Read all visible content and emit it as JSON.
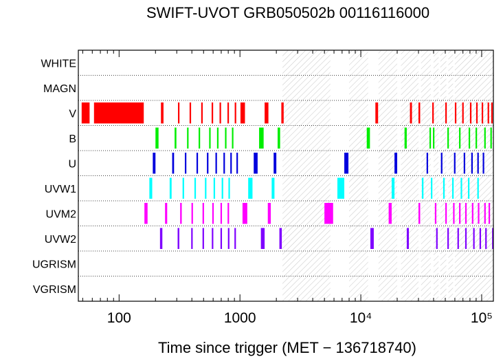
{
  "chart_data": {
    "type": "timeline",
    "title": "SWIFT-UVOT GRB050502b 00116116000",
    "xlabel": "Time since trigger (MET − 136718740)",
    "ylabel": "",
    "x_scale": "log",
    "xlim": [
      46,
      125000
    ],
    "x_ticks": [
      {
        "value": 100,
        "label": "100"
      },
      {
        "value": 1000,
        "label": "1000"
      },
      {
        "value": 10000,
        "label": "10⁴"
      },
      {
        "value": 100000,
        "label": "10⁵"
      }
    ],
    "categories": [
      "WHITE",
      "MAGN",
      "V",
      "B",
      "U",
      "UVW1",
      "UVM2",
      "UVW2",
      "UGRISM",
      "VGRISM"
    ],
    "colors": {
      "V": "#ff0000",
      "B": "#00ee00",
      "U": "#0000dd",
      "UVW1": "#00ffff",
      "UVM2": "#ff00ff",
      "UVW2": "#7f00ff"
    },
    "series": [
      {
        "name": "V",
        "intervals": [
          [
            49,
            57
          ],
          [
            62,
            160
          ],
          [
            222,
            233
          ],
          [
            307,
            315
          ],
          [
            383,
            392
          ],
          [
            478,
            490
          ],
          [
            583,
            594
          ],
          [
            678,
            690
          ],
          [
            788,
            800
          ],
          [
            905,
            922
          ],
          [
            1010,
            1100
          ],
          [
            1600,
            1720
          ],
          [
            2200,
            2300
          ],
          [
            13200,
            13900
          ],
          [
            25500,
            26500
          ],
          [
            30000,
            31000
          ],
          [
            39000,
            40000
          ],
          [
            50000,
            51000
          ],
          [
            60000,
            61000
          ],
          [
            69000,
            70000
          ],
          [
            80000,
            81000
          ],
          [
            90000,
            91000
          ],
          [
            100000,
            101000
          ],
          [
            112000,
            113000
          ],
          [
            120000,
            121000
          ]
        ]
      },
      {
        "name": "B",
        "intervals": [
          [
            200,
            212
          ],
          [
            288,
            298
          ],
          [
            365,
            375
          ],
          [
            455,
            465
          ],
          [
            556,
            566
          ],
          [
            646,
            656
          ],
          [
            752,
            762
          ],
          [
            858,
            868
          ],
          [
            1440,
            1570
          ],
          [
            2050,
            2150
          ],
          [
            11200,
            11900
          ],
          [
            23000,
            24000
          ],
          [
            37000,
            38000
          ],
          [
            39500,
            40500
          ],
          [
            52000,
            53000
          ],
          [
            65000,
            66000
          ],
          [
            78000,
            79000
          ],
          [
            89000,
            90000
          ],
          [
            105000,
            106000
          ],
          [
            118000,
            120000
          ]
        ]
      },
      {
        "name": "U",
        "intervals": [
          [
            190,
            200
          ],
          [
            275,
            285
          ],
          [
            350,
            360
          ],
          [
            437,
            447
          ],
          [
            533,
            543
          ],
          [
            627,
            637
          ],
          [
            730,
            740
          ],
          [
            832,
            842
          ],
          [
            935,
            945
          ],
          [
            1300,
            1400
          ],
          [
            1900,
            2000
          ],
          [
            7300,
            7900
          ],
          [
            19000,
            20000
          ],
          [
            35000,
            36000
          ],
          [
            46000,
            47000
          ],
          [
            59000,
            60000
          ],
          [
            71000,
            72000
          ],
          [
            82000,
            83000
          ],
          [
            92000,
            93000
          ],
          [
            102000,
            103000
          ]
        ]
      },
      {
        "name": "UVW1",
        "intervals": [
          [
            178,
            188
          ],
          [
            262,
            272
          ],
          [
            335,
            345
          ],
          [
            420,
            430
          ],
          [
            513,
            523
          ],
          [
            605,
            615
          ],
          [
            706,
            716
          ],
          [
            803,
            813
          ],
          [
            1170,
            1270
          ],
          [
            1830,
            1930
          ],
          [
            6400,
            7300
          ],
          [
            18000,
            19000
          ],
          [
            32000,
            33000
          ],
          [
            38000,
            39000
          ],
          [
            48000,
            49000
          ],
          [
            57000,
            58000
          ],
          [
            67000,
            68000
          ],
          [
            77000,
            78000
          ],
          [
            92000,
            93000
          ]
        ]
      },
      {
        "name": "UVM2",
        "intervals": [
          [
            162,
            172
          ],
          [
            240,
            250
          ],
          [
            320,
            330
          ],
          [
            397,
            407
          ],
          [
            490,
            500
          ],
          [
            590,
            600
          ],
          [
            690,
            700
          ],
          [
            790,
            800
          ],
          [
            1050,
            1150
          ],
          [
            1700,
            1800
          ],
          [
            5000,
            5900
          ],
          [
            17000,
            18000
          ],
          [
            30000,
            31000
          ],
          [
            41000,
            42000
          ],
          [
            50000,
            51000
          ],
          [
            58000,
            59000
          ],
          [
            65000,
            66000
          ],
          [
            73000,
            74000
          ],
          [
            83000,
            84000
          ],
          [
            93000,
            94000
          ],
          [
            105000,
            106000
          ],
          [
            114000,
            115000
          ]
        ]
      },
      {
        "name": "UVW2",
        "intervals": [
          [
            218,
            228
          ],
          [
            305,
            315
          ],
          [
            395,
            405
          ],
          [
            490,
            500
          ],
          [
            585,
            595
          ],
          [
            690,
            700
          ],
          [
            795,
            805
          ],
          [
            900,
            910
          ],
          [
            1490,
            1600
          ],
          [
            2120,
            2220
          ],
          [
            12000,
            12800
          ],
          [
            24000,
            25000
          ],
          [
            42000,
            43000
          ],
          [
            52000,
            53000
          ],
          [
            63000,
            64000
          ],
          [
            73000,
            74000
          ],
          [
            85000,
            86000
          ],
          [
            96000,
            97000
          ],
          [
            107000,
            108000
          ],
          [
            122000,
            123000
          ]
        ]
      }
    ],
    "hatched_x_ranges": [
      [
        2250,
        5600
      ],
      [
        8000,
        11500
      ],
      [
        14000,
        20000
      ],
      [
        21500,
        30000
      ],
      [
        31500,
        38000
      ],
      [
        40000,
        44000
      ],
      [
        45500,
        51000
      ],
      [
        53000,
        58000
      ],
      [
        60000,
        125000
      ]
    ],
    "grid": true,
    "legend": "none"
  }
}
